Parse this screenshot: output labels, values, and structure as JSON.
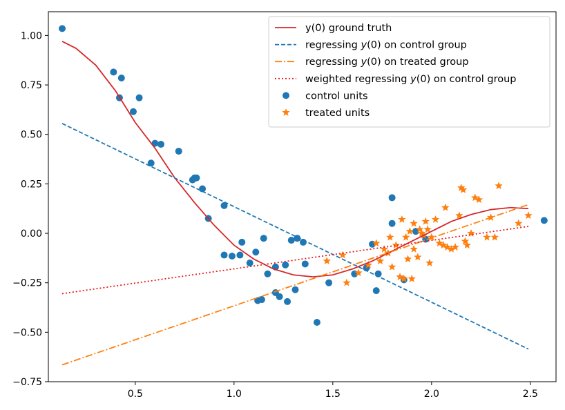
{
  "chart_data": {
    "type": "scatter",
    "title": "",
    "xlabel": "",
    "ylabel": "",
    "xlim": [
      0.06,
      2.63
    ],
    "ylim": [
      -0.75,
      1.12
    ],
    "x_ticks": [
      0.5,
      1.0,
      1.5,
      2.0,
      2.5
    ],
    "x_tick_labels": [
      "0.5",
      "1.0",
      "1.5",
      "2.0",
      "2.5"
    ],
    "y_ticks": [
      -0.75,
      -0.5,
      -0.25,
      0.0,
      0.25,
      0.5,
      0.75,
      1.0
    ],
    "y_tick_labels": [
      "−0.75",
      "−0.50",
      "−0.25",
      "0.00",
      "0.25",
      "0.50",
      "0.75",
      "1.00"
    ],
    "grid": false,
    "legend_position": "top-right",
    "series": [
      {
        "name": "y(0) ground truth",
        "label_prefix": "y",
        "label_suffix": "(0) ground truth",
        "kind": "line",
        "style": "solid",
        "color": "#d62728",
        "x": [
          0.13,
          0.2,
          0.3,
          0.4,
          0.5,
          0.6,
          0.7,
          0.8,
          0.9,
          1.0,
          1.1,
          1.2,
          1.3,
          1.4,
          1.5,
          1.6,
          1.7,
          1.8,
          1.9,
          2.0,
          2.1,
          2.2,
          2.3,
          2.4,
          2.49
        ],
        "y": [
          0.97,
          0.935,
          0.85,
          0.72,
          0.56,
          0.43,
          0.28,
          0.155,
          0.04,
          -0.06,
          -0.13,
          -0.18,
          -0.21,
          -0.22,
          -0.21,
          -0.18,
          -0.14,
          -0.09,
          -0.04,
          0.01,
          0.06,
          0.095,
          0.12,
          0.13,
          0.125
        ]
      },
      {
        "name": "regressing y(0) on control group",
        "label_prefix": "regressing ",
        "label_var": "y",
        "label_suffix": "(0) on control group",
        "kind": "line",
        "style": "dashed",
        "color": "#1f77b4",
        "x": [
          0.13,
          2.49
        ],
        "y": [
          0.555,
          -0.585
        ]
      },
      {
        "name": "regressing y(0) on treated group",
        "label_prefix": "regressing ",
        "label_var": "y",
        "label_suffix": "(0) on treated group",
        "kind": "line",
        "style": "dashdot",
        "color": "#ff7f0e",
        "x": [
          0.13,
          2.49
        ],
        "y": [
          -0.665,
          0.145
        ]
      },
      {
        "name": "weighted regressing y(0) on control group",
        "label_prefix": "weighted regressing ",
        "label_var": "y",
        "label_suffix": "(0) on control group",
        "kind": "line",
        "style": "dotted",
        "color": "#e41a1c",
        "x": [
          0.13,
          2.49
        ],
        "y": [
          -0.305,
          0.035
        ]
      },
      {
        "name": "control units",
        "label_prefix": "control units",
        "kind": "points",
        "marker": "circle",
        "color": "#1f77b4",
        "x": [
          0.13,
          0.39,
          0.42,
          0.43,
          0.49,
          0.52,
          0.58,
          0.6,
          0.63,
          0.72,
          0.79,
          0.8,
          0.81,
          0.84,
          0.87,
          0.95,
          0.95,
          0.99,
          1.03,
          1.04,
          1.08,
          1.11,
          1.12,
          1.14,
          1.15,
          1.17,
          1.21,
          1.21,
          1.23,
          1.26,
          1.27,
          1.29,
          1.31,
          1.32,
          1.35,
          1.36,
          1.42,
          1.48,
          1.61,
          1.67,
          1.7,
          1.72,
          1.73,
          1.8,
          1.8,
          1.86,
          1.92,
          1.97,
          2.57
        ],
        "y": [
          1.035,
          0.815,
          0.685,
          0.785,
          0.615,
          0.685,
          0.355,
          0.455,
          0.45,
          0.415,
          0.27,
          0.28,
          0.28,
          0.225,
          0.075,
          -0.11,
          0.14,
          -0.115,
          -0.11,
          -0.045,
          -0.15,
          -0.095,
          -0.34,
          -0.335,
          -0.025,
          -0.205,
          -0.3,
          -0.17,
          -0.32,
          -0.16,
          -0.345,
          -0.035,
          -0.285,
          -0.025,
          -0.045,
          -0.155,
          -0.45,
          -0.25,
          -0.205,
          -0.175,
          -0.055,
          -0.29,
          -0.205,
          0.18,
          0.05,
          -0.235,
          0.01,
          -0.03,
          0.065
        ]
      },
      {
        "name": "treated units",
        "label_prefix": "treated units",
        "kind": "points",
        "marker": "star",
        "color": "#ff7f0e",
        "x": [
          1.47,
          1.55,
          1.57,
          1.63,
          1.68,
          1.72,
          1.74,
          1.76,
          1.78,
          1.79,
          1.8,
          1.82,
          1.84,
          1.85,
          1.86,
          1.87,
          1.88,
          1.89,
          1.9,
          1.91,
          1.91,
          1.93,
          1.94,
          1.95,
          1.96,
          1.97,
          1.98,
          1.99,
          2.0,
          2.02,
          2.04,
          2.06,
          2.07,
          2.08,
          2.1,
          2.12,
          2.14,
          2.15,
          2.16,
          2.17,
          2.18,
          2.2,
          2.22,
          2.24,
          2.28,
          2.3,
          2.32,
          2.34,
          2.44,
          2.49
        ],
        "y": [
          -0.14,
          -0.11,
          -0.25,
          -0.2,
          -0.16,
          -0.05,
          -0.14,
          -0.08,
          -0.1,
          -0.02,
          -0.17,
          -0.06,
          -0.22,
          0.07,
          -0.23,
          -0.02,
          -0.13,
          0.01,
          -0.23,
          -0.08,
          0.05,
          -0.12,
          0.02,
          0.0,
          -0.01,
          0.06,
          0.02,
          -0.15,
          -0.02,
          0.07,
          -0.05,
          -0.06,
          0.13,
          -0.07,
          -0.08,
          -0.07,
          0.09,
          0.23,
          0.22,
          -0.04,
          -0.06,
          0.0,
          0.18,
          0.17,
          -0.02,
          0.08,
          -0.02,
          0.24,
          0.05,
          0.09
        ]
      }
    ]
  }
}
